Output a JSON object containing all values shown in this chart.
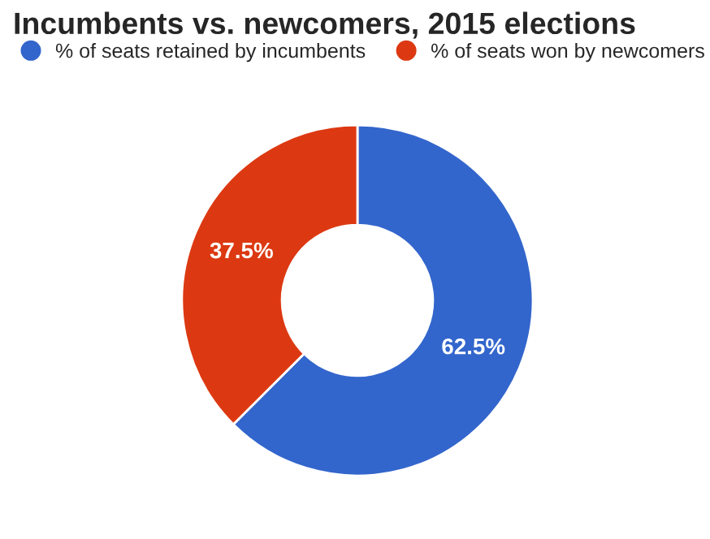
{
  "chart_data": {
    "type": "donut",
    "title": "Incumbents vs. newcomers, 2015 elections",
    "categories": [
      "% of seats retained by incumbents",
      "% of seats won by newcomers"
    ],
    "values": [
      62.5,
      37.5
    ],
    "colors": [
      "#3366cc",
      "#dc3912"
    ],
    "value_labels": [
      "62.5%",
      "37.5%"
    ],
    "legend": "top"
  }
}
